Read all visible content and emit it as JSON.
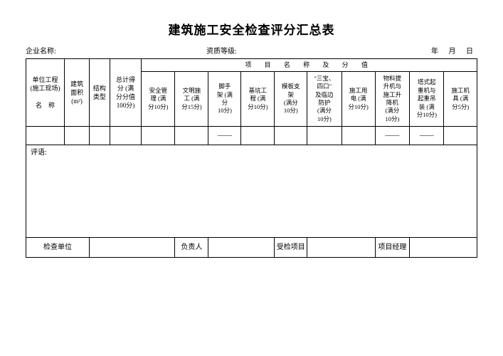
{
  "title": "建筑施工安全检查评分汇总表",
  "meta": {
    "company_label": "企业名称:",
    "grade_label": "资质等级:",
    "date_label": "年 月 日"
  },
  "header": {
    "col_unit": "单位工程\n(施工现场)\n\n名　称",
    "col_area": "建筑\n面积\n(m²)",
    "col_struct": "结构\n类型",
    "col_total": "总计得\n分 (满\n分分值\n100分)",
    "section": "项 目 名 称 及 分 值",
    "subcols": [
      "安全管\n理 (满\n分10分)",
      "文明施\n工 (满\n分15分)",
      "脚手\n架 (满\n分\n10分)",
      "基坑工\n程 (满\n分10分)",
      "模板支\n架\n(满分\n10分)",
      "\"三宝、\n四口\"\n及临边\n防护\n(满分\n10分)",
      "施工用\n电 (满\n分10分)",
      "物料提\n升机与\n施工升\n降机\n(满分\n10分)",
      "塔式起\n重机与\n起重吊\n装 (满\n分10分)",
      "施工机\n具 (满\n分5分)"
    ]
  },
  "data_row": {
    "c1": "",
    "c2": "",
    "c3": "",
    "c4": "",
    "s1": "",
    "s2": "",
    "s3": "——",
    "s4": "",
    "s5": "",
    "s6": "",
    "s7": "",
    "s8": "——",
    "s9": "——",
    "s10": ""
  },
  "comments_label": "评语:",
  "footer": {
    "check_unit": "检查单位",
    "responsible": "负责人",
    "inspected": "受检项目",
    "pm": "项目经理"
  },
  "style": {
    "border_color": "#000000",
    "background": "#ffffff",
    "title_fontsize": 17,
    "body_fontsize": 9
  }
}
